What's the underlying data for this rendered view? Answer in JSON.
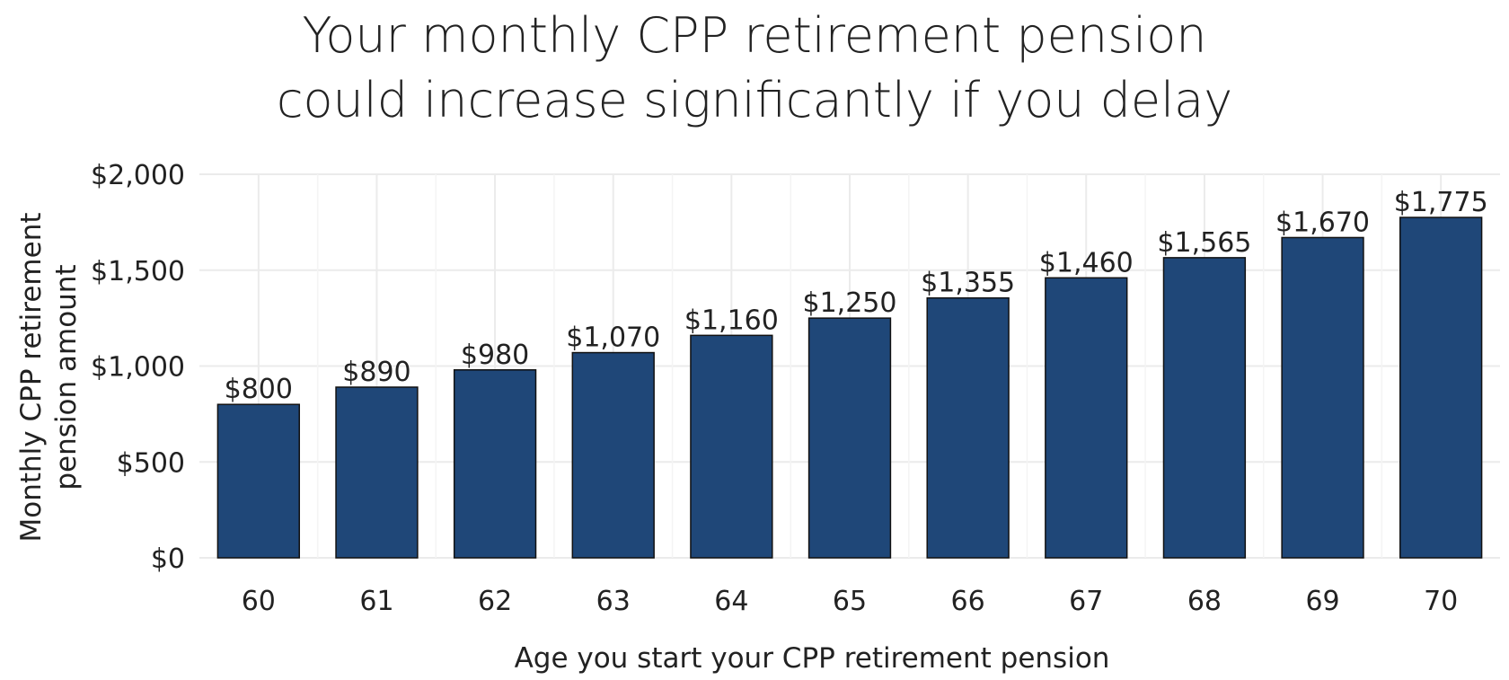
{
  "chart_data": {
    "type": "bar",
    "title_lines": [
      "Your monthly CPP retirement pension",
      "could increase significantly if you delay"
    ],
    "xlabel": "Age you start your CPP retirement pension",
    "ylabel_lines": [
      "Monthly CPP retirement",
      "pension amount"
    ],
    "categories": [
      "60",
      "61",
      "62",
      "63",
      "64",
      "65",
      "66",
      "67",
      "68",
      "69",
      "70"
    ],
    "values": [
      800,
      890,
      980,
      1070,
      1160,
      1250,
      1355,
      1460,
      1565,
      1670,
      1775
    ],
    "value_labels": [
      "$800",
      "$890",
      "$980",
      "$1,070",
      "$1,160",
      "$1,250",
      "$1,355",
      "$1,460",
      "$1,565",
      "$1,670",
      "$1,775"
    ],
    "y_ticks": [
      0,
      500,
      1000,
      1500,
      2000
    ],
    "y_tick_labels": [
      "$0",
      "$500",
      "$1,000",
      "$1,500",
      "$2,000"
    ],
    "ylim": [
      0,
      2000
    ],
    "grid": true,
    "legend": "none",
    "bar_color": "#1f4778",
    "bar_edge_color": "#111111",
    "grid_color": "#ebebeb"
  }
}
